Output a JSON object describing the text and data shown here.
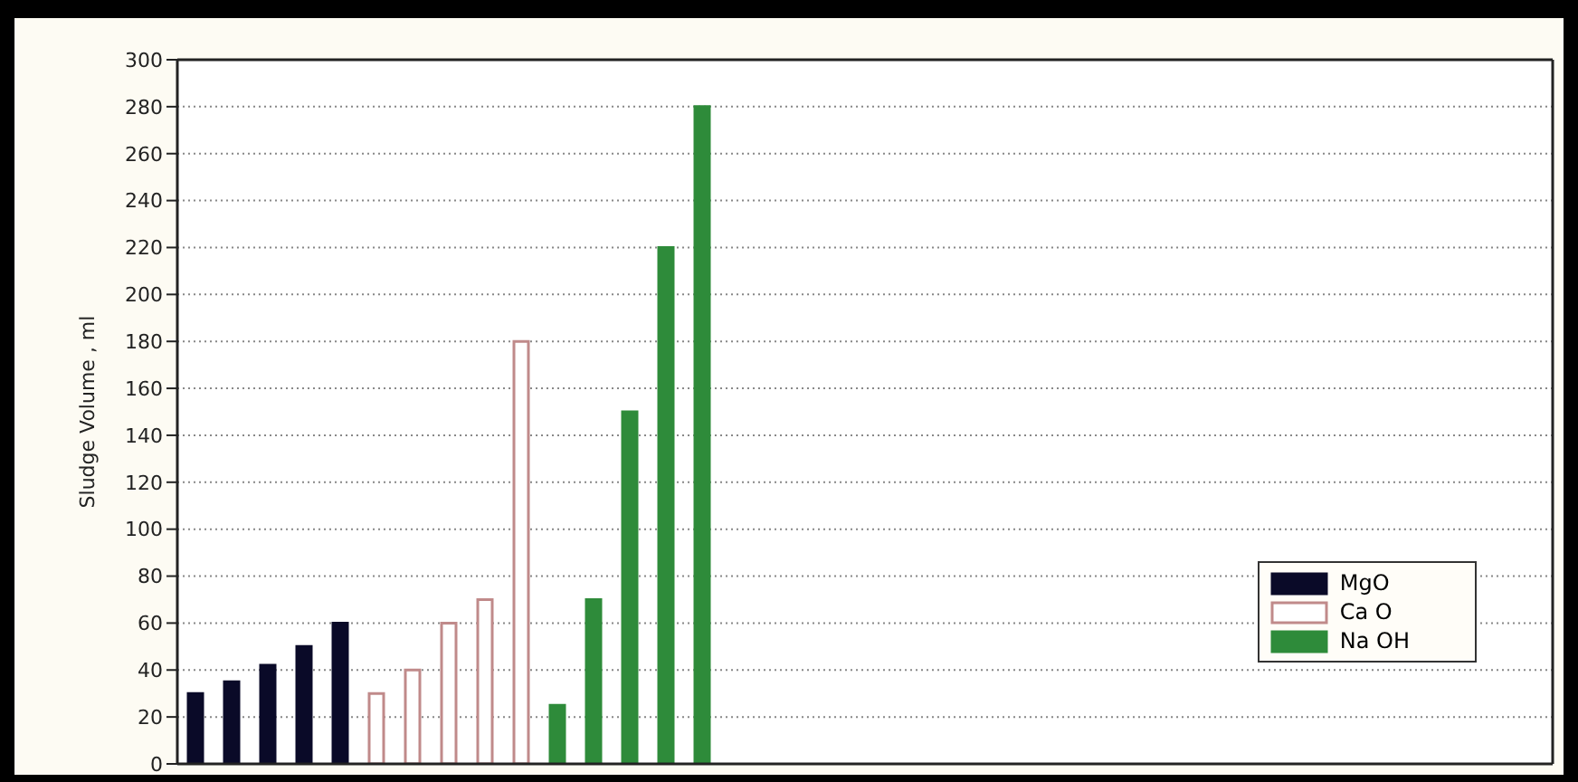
{
  "chart_data": {
    "type": "bar",
    "ylabel": "Sludge Volume , ml",
    "categories": [
      null,
      null,
      null,
      null,
      null,
      null,
      null,
      null,
      null,
      null,
      null,
      null,
      null,
      null,
      null,
      null,
      null,
      null,
      null,
      null,
      null,
      null,
      null,
      null,
      null,
      null,
      null,
      null,
      null,
      null,
      null,
      null,
      null,
      null,
      null,
      null,
      null,
      null
    ],
    "series": [
      {
        "name": "MgO",
        "color": "#0a0a28",
        "values": [
          30,
          35,
          42,
          50,
          60,
          null,
          null,
          null,
          null,
          null,
          null,
          null,
          null,
          null,
          null,
          null,
          null,
          null,
          null,
          null,
          null,
          null,
          null,
          null,
          null,
          null,
          null,
          null,
          null,
          null,
          null,
          null,
          null,
          null,
          null,
          null,
          null,
          null
        ]
      },
      {
        "name": "Ca O",
        "color": "#c08a8a",
        "values": [
          null,
          null,
          null,
          null,
          null,
          30,
          40,
          60,
          70,
          180,
          null,
          null,
          null,
          null,
          null,
          null,
          null,
          null,
          null,
          null,
          null,
          null,
          null,
          null,
          null,
          null,
          null,
          null,
          null,
          null,
          null,
          null,
          null,
          null,
          null,
          null,
          null,
          null
        ]
      },
      {
        "name": "Na OH",
        "color": "#2e8b3a",
        "values": [
          null,
          null,
          null,
          null,
          null,
          null,
          null,
          null,
          null,
          null,
          25,
          70,
          150,
          220,
          280,
          null,
          null,
          null,
          null,
          null,
          null,
          null,
          null,
          null,
          null,
          null,
          null,
          null,
          null,
          null,
          null,
          null,
          null,
          null,
          null,
          null,
          null,
          null
        ]
      }
    ],
    "ylim": [
      0,
      300
    ],
    "yticks": [
      0,
      20,
      40,
      60,
      80,
      100,
      120,
      140,
      160,
      180,
      200,
      220,
      240,
      260,
      280,
      300
    ],
    "grid": "y",
    "legend": "bottom right",
    "tick_labels": "y"
  }
}
